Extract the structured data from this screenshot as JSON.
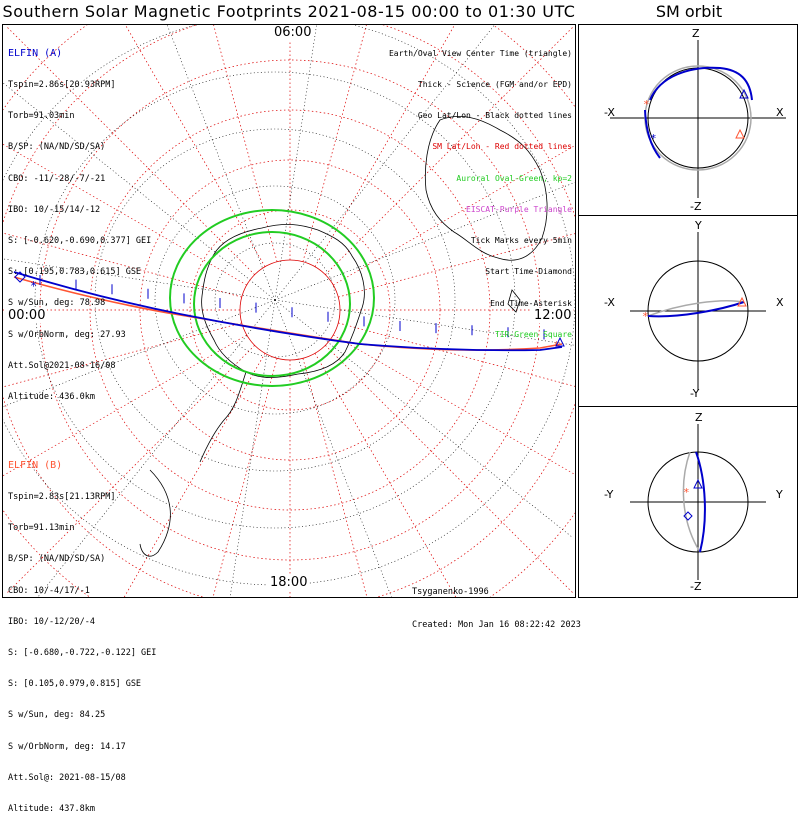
{
  "title": "Southern Solar Magnetic Footprints 2021-08-15 00:00 to 01:30 UTC",
  "orbit_title": "SM orbit",
  "hours": {
    "top": "06:00",
    "left": "00:00",
    "right": "12:00",
    "bottom": "18:00"
  },
  "sat_a": {
    "name": "ELFIN (A)",
    "color": "#0000cc",
    "lines": [
      "Tspin=2.86s[20.93RPM]",
      "Torb=91.03min",
      "B/SP: (NA/ND/SD/SA)",
      "CBO: -11/-28/-7/-21",
      "IBO: 10/-15/14/-12",
      "S: [-0.620,-0.690,0.377] GEI",
      "S: [0.195,0.783,0.615] GSE",
      "S w/Sun, deg: 78.98",
      "S w/OrbNorm, deg: 27.93",
      "Att.Sol@2021-08-16/08",
      "Altitude: 436.0km"
    ]
  },
  "sat_b": {
    "name": "ELFIN (B)",
    "color": "#ff5533",
    "lines": [
      "Tspin=2.83s[21.13RPM]",
      "Torb=91.13min",
      "B/SP: (NA/ND/SD/SA)",
      "CBO: 10/-4/17/-1",
      "IBO: 10/-12/20/-4",
      "S: [-0.680,-0.722,-0.122] GEI",
      "S: [0.105,0.979,0.815] GSE",
      "S w/Sun, deg: 84.25",
      "S w/OrbNorm, deg: 14.17",
      "Att.Sol@: 2021-08-15/08",
      "Altitude: 437.8km"
    ]
  },
  "legend": [
    {
      "text": "Earth/Oval View Center Time (triangle)",
      "color": "#000000"
    },
    {
      "text": "Thick - Science (FGM and/or EPD)",
      "color": "#000000"
    },
    {
      "text": "Geo Lat/Lon - Black dotted lines",
      "color": "#000000"
    },
    {
      "text": "SM Lat/Lon - Red dotted lines",
      "color": "#dd0000"
    },
    {
      "text": "Auroral Oval-Green, kp=2",
      "color": "#22cc22"
    },
    {
      "text": "EISCAT-Purple Triangle",
      "color": "#cc44cc"
    },
    {
      "text": "Tick Marks every 5min",
      "color": "#000000"
    },
    {
      "text": "Start Time-Diamond",
      "color": "#000000"
    },
    {
      "text": "End Time-Asterisk",
      "color": "#000000"
    },
    {
      "text": "TIR-Green Square",
      "color": "#22cc22"
    }
  ],
  "model": "Tsyganenko-1996",
  "created": "Created: Mon Jan 16 08:22:42 2023",
  "orbit_panels": [
    {
      "top": "Z",
      "bottom": "-Z",
      "left": "-X",
      "right": "X"
    },
    {
      "top": "Y",
      "bottom": "-Y",
      "left": "-X",
      "right": "X"
    },
    {
      "top": "Z",
      "bottom": "-Z",
      "left": "-Y",
      "right": "Y"
    }
  ],
  "colors": {
    "sm_grid": "#dd0000",
    "geo_grid": "#000000",
    "oval": "#22cc22",
    "track_a": "#0000cc",
    "track_b": "#ff5533"
  }
}
